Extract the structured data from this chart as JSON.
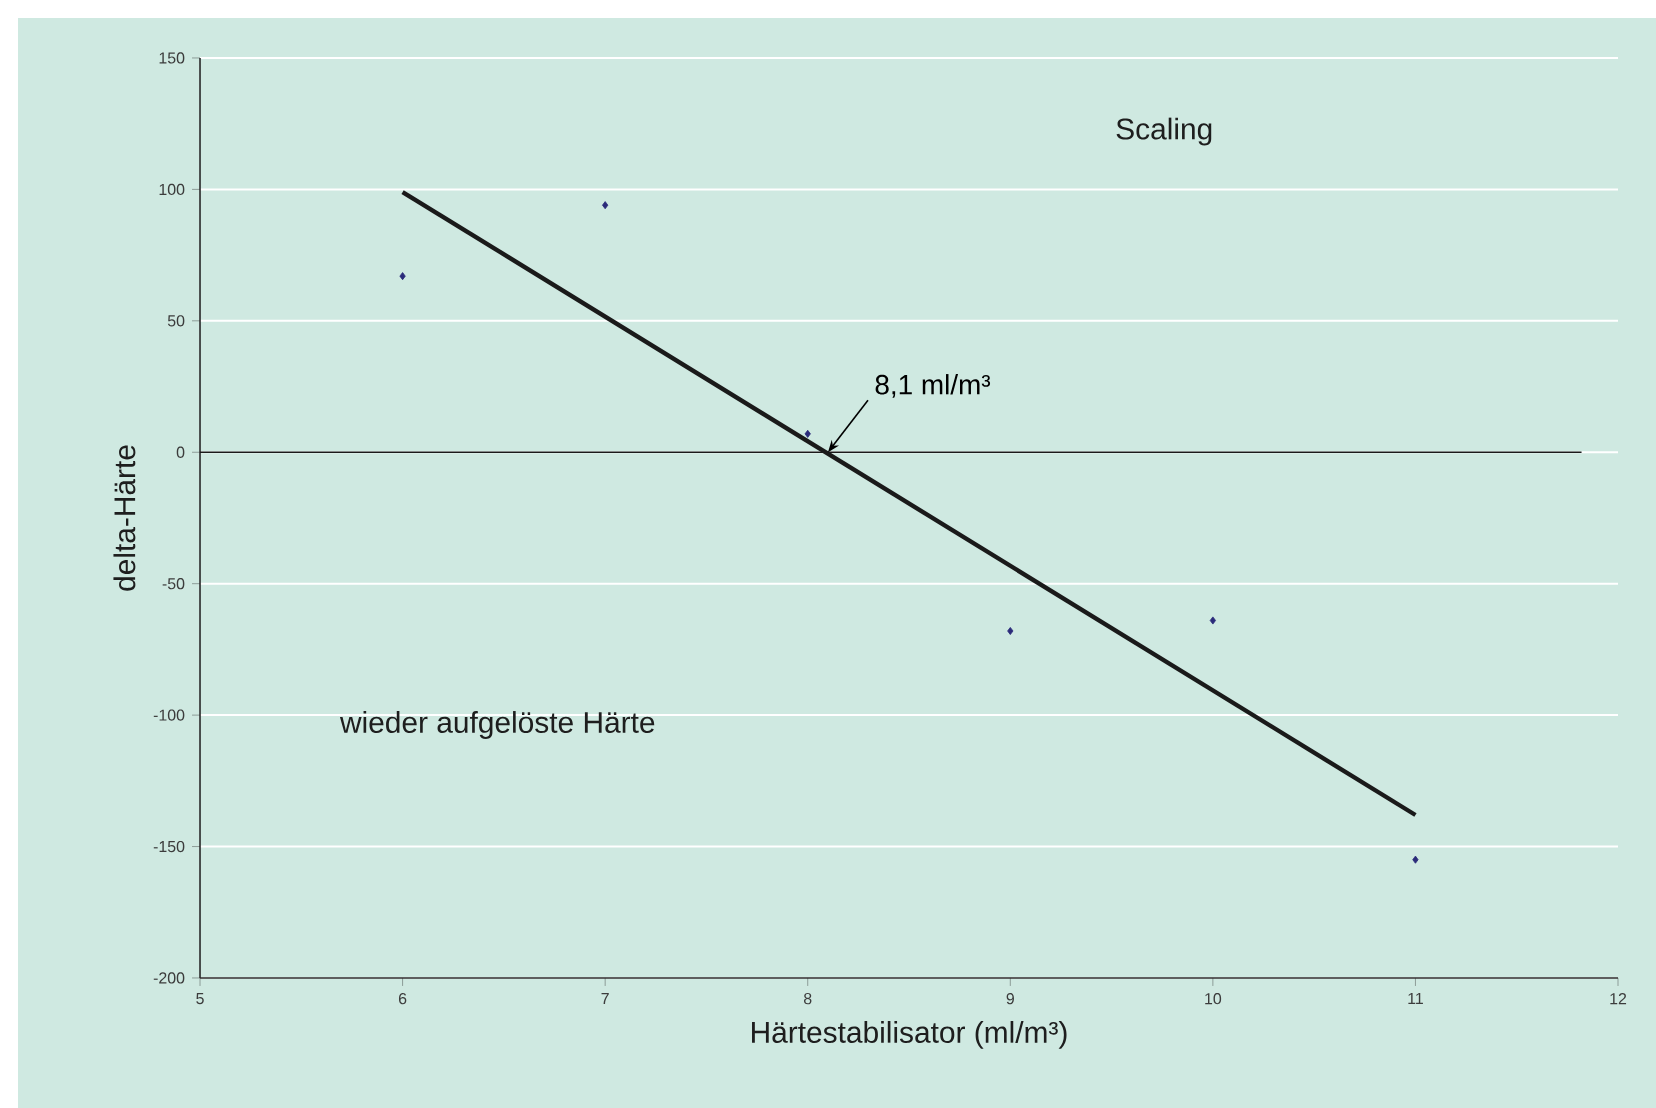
{
  "chart_data": {
    "type": "scatter",
    "xlabel": "Härtestabilisator (ml/m³)",
    "ylabel": "delta-Härte",
    "xlim": [
      5,
      12
    ],
    "xticks": [
      5,
      6,
      7,
      8,
      9,
      10,
      11,
      12
    ],
    "ylim": [
      -200,
      150
    ],
    "yticks": [
      -200,
      -150,
      -100,
      -50,
      0,
      50,
      100,
      150
    ],
    "grid": "y",
    "series": [
      {
        "color": "#2b2b7a",
        "marker": "diamond",
        "x": [
          6,
          7,
          8,
          9,
          10,
          11
        ],
        "values": [
          67,
          94,
          7,
          -68,
          -64,
          -155
        ]
      },
      {
        "type": "line",
        "marker": "none",
        "color": "#1a1a1a",
        "x": [
          6,
          11
        ],
        "values": [
          99,
          -138
        ]
      }
    ],
    "ref_lines": [
      {
        "axis": "y",
        "value": 0,
        "color": "#1a1a1a"
      }
    ],
    "annotations": [
      "Scaling",
      "wieder aufgelöste Härte",
      {
        "text": "8,1 ml/m³",
        "x": 8.1,
        "y": 0
      }
    ]
  }
}
